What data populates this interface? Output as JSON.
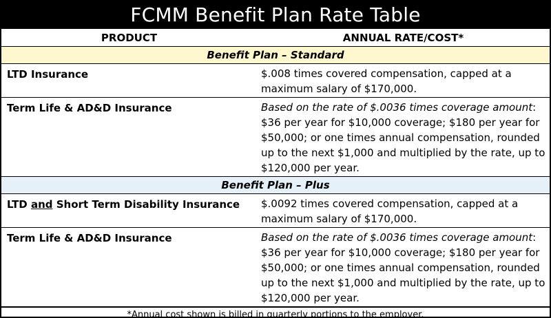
{
  "title": "FCMM Benefit Plan Rate Table",
  "columns": {
    "product": "PRODUCT",
    "rate": "ANNUAL RATE/COST*"
  },
  "sections": {
    "standard": {
      "label": "Benefit Plan – Standard",
      "rows": [
        {
          "product": "LTD Insurance",
          "rate_text": "$.008 times covered compensation, capped at a maximum salary of $170,000."
        },
        {
          "product": "Term Life & AD&D Insurance",
          "rate_italic": "Based on the rate of $.0036 times coverage amount",
          "rate_text": ": $36 per year for $10,000 coverage; $180 per year for $50,000; or one times annual compensation, rounded up to the next $1,000 and multiplied by the rate, up to $120,000 per year."
        }
      ]
    },
    "plus": {
      "label": "Benefit Plan – Plus",
      "rows": [
        {
          "product_prefix": "LTD ",
          "product_underlined": "and",
          "product_suffix": " Short Term Disability Insurance",
          "rate_text": "$.0092 times covered compensation, capped at a maximum salary of $170,000."
        },
        {
          "product": "Term Life & AD&D Insurance",
          "rate_italic": "Based on the rate of $.0036 times coverage amount",
          "rate_text": ": $36 per year for $10,000 coverage; $180 per year for $50,000; or one times annual compensation, rounded up to the next $1,000 and multiplied by the rate, up to $120,000 per year."
        }
      ]
    }
  },
  "footnote": "*Annual cost shown is billed in quarterly portions to the employer.",
  "colors": {
    "header_bg": "#000000",
    "standard_bg": "#fff8cf",
    "plus_bg": "#e6f0f9"
  }
}
